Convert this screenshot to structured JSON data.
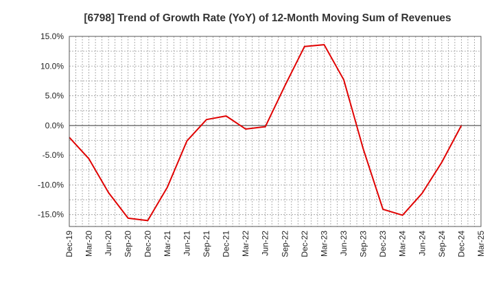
{
  "chart_data": {
    "type": "line",
    "title": "[6798]  Trend of Growth Rate (YoY) of 12-Month Moving Sum of Revenues",
    "xlabel": "",
    "ylabel": "",
    "ylim": [
      -17,
      15
    ],
    "yticks": [
      15,
      10,
      5,
      0,
      -5,
      -10,
      -15
    ],
    "ytick_labels": [
      "15.0%",
      "10.0%",
      "5.0%",
      "0.0%",
      "-5.0%",
      "-10.0%",
      "-15.0%"
    ],
    "x_tick_labels": [
      "Dec-19",
      "Mar-20",
      "Jun-20",
      "Sep-20",
      "Dec-20",
      "Mar-21",
      "Jun-21",
      "Sep-21",
      "Dec-21",
      "Mar-22",
      "Jun-22",
      "Sep-22",
      "Dec-22",
      "Mar-23",
      "Jun-23",
      "Sep-23",
      "Dec-23",
      "Mar-24",
      "Jun-24",
      "Sep-24",
      "Dec-24",
      "Mar-25"
    ],
    "grid": true,
    "line_color": "#e00000",
    "series": [
      {
        "x": [
          "Dec-19",
          "Mar-20",
          "Jun-20",
          "Sep-20",
          "Dec-20",
          "Mar-21",
          "Jun-21",
          "Sep-21",
          "Dec-21",
          "Mar-22",
          "Jun-22",
          "Sep-22",
          "Dec-22",
          "Mar-23",
          "Jun-23",
          "Sep-23",
          "Dec-23",
          "Mar-24",
          "Jun-24",
          "Sep-24",
          "Dec-24"
        ],
        "values": [
          -2.0,
          -5.6,
          -11.3,
          -15.6,
          -16.0,
          -10.4,
          -2.6,
          1.0,
          1.6,
          -0.6,
          -0.2,
          6.7,
          13.3,
          13.6,
          7.7,
          -4.0,
          -14.1,
          -15.1,
          -11.4,
          -6.2,
          0.0
        ]
      }
    ]
  }
}
